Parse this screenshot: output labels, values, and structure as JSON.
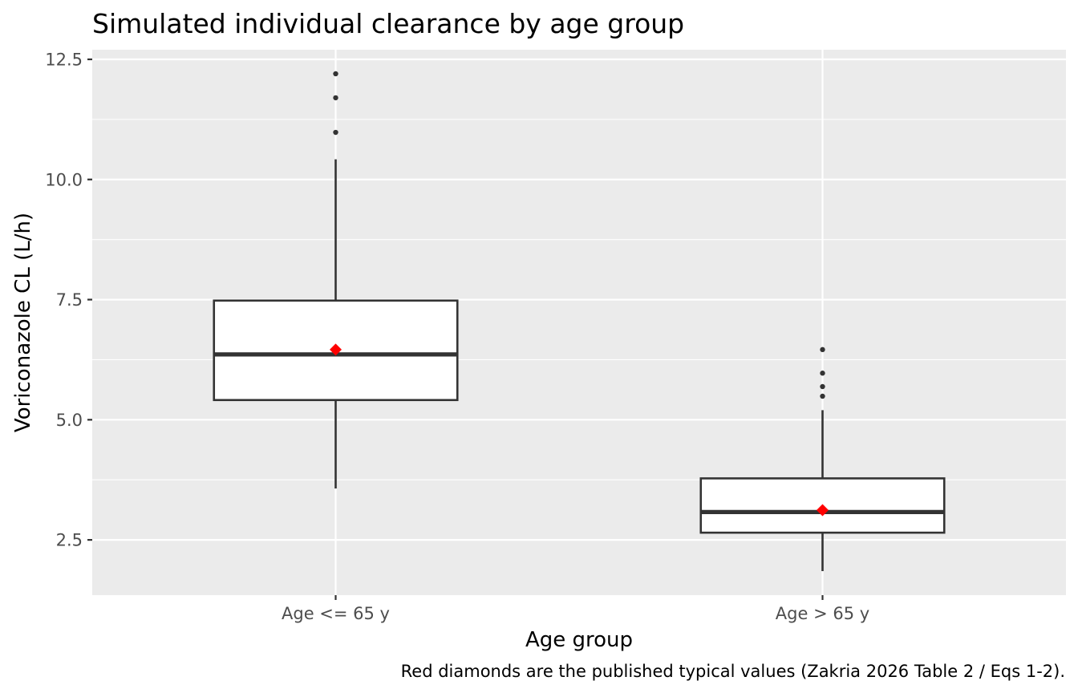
{
  "chart_data": {
    "type": "box",
    "title": "Simulated individual clearance by age group",
    "xlabel": "Age group",
    "ylabel": "Voriconazole CL (L/h)",
    "caption": "Red diamonds are the published typical values (Zakria 2026 Table 2 / Eqs 1-2).",
    "ylim": [
      1.35,
      12.7
    ],
    "yticks": [
      2.5,
      5.0,
      7.5,
      10.0,
      12.5
    ],
    "ytick_labels": [
      "2.5",
      "5.0",
      "7.5",
      "10.0",
      "12.5"
    ],
    "categories": [
      "Age <= 65 y",
      "Age > 65 y"
    ],
    "boxes": [
      {
        "category": "Age <= 65 y",
        "whisker_low": 3.57,
        "q1": 5.41,
        "median": 6.36,
        "q3": 7.48,
        "whisker_high": 10.42,
        "outliers": [
          10.98,
          11.7,
          12.2
        ],
        "typical_value": 6.46
      },
      {
        "category": "Age > 65 y",
        "whisker_low": 1.85,
        "q1": 2.65,
        "median": 3.08,
        "q3": 3.78,
        "whisker_high": 5.2,
        "outliers": [
          5.49,
          5.69,
          5.97,
          6.46
        ],
        "typical_value": 3.12
      }
    ],
    "grid": true,
    "legend": "none",
    "colors": {
      "panel_background": "#ebebeb",
      "grid_line": "#ffffff",
      "box_fill": "#ffffff",
      "box_line": "#333333",
      "typical_value_marker": "#ff0000"
    }
  }
}
